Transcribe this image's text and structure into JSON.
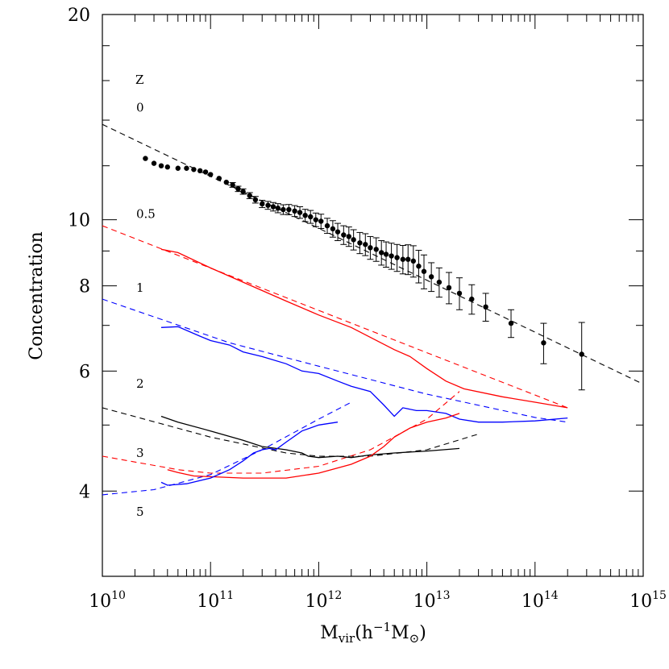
{
  "chart_data": {
    "type": "line",
    "title": "",
    "xlabel": {
      "main": "M",
      "sub": "vir",
      "rest": "(h",
      "sup": "−1",
      "main2": "M",
      "sub2": "⊙",
      "close": ")"
    },
    "ylabel": "Concentration",
    "x_scale": "log",
    "y_scale": "log",
    "xlim": [
      10000000000.0,
      1000000000000000.0
    ],
    "ylim": [
      3.0,
      20.0
    ],
    "x_ticks": [
      {
        "value": 10000000000.0,
        "base": "10",
        "exp": "10"
      },
      {
        "value": 100000000000.0,
        "base": "10",
        "exp": "11"
      },
      {
        "value": 1000000000000.0,
        "base": "10",
        "exp": "12"
      },
      {
        "value": 10000000000000.0,
        "base": "10",
        "exp": "13"
      },
      {
        "value": 100000000000000.0,
        "base": "10",
        "exp": "14"
      },
      {
        "value": 1000000000000000.0,
        "base": "10",
        "exp": "15"
      }
    ],
    "y_ticks": [
      {
        "value": 4,
        "label": "4"
      },
      {
        "value": 6,
        "label": "6"
      },
      {
        "value": 8,
        "label": "8"
      },
      {
        "value": 10,
        "label": "10"
      },
      {
        "value": 20,
        "label": "20"
      }
    ],
    "legend_header": "Z",
    "redshift_labels": [
      {
        "text": "0",
        "y": 14.6
      },
      {
        "text": "0.5",
        "y": 10.2
      },
      {
        "text": "1",
        "y": 7.95
      },
      {
        "text": "2",
        "y": 5.75
      },
      {
        "text": "3",
        "y": 4.55
      },
      {
        "text": "5",
        "y": 3.73
      }
    ],
    "colors": {
      "z0": "#000000",
      "z05": "#ff0000",
      "z1": "#0000ff",
      "z2": "#000000",
      "z3": "#ff0000",
      "z5": "#0000ff"
    },
    "fits": [
      {
        "name": "z=0 fit",
        "color": "#000000",
        "x": [
          10000000000.0,
          1000000000000000.0
        ],
        "y": [
          13.8,
          5.74
        ]
      },
      {
        "name": "z=0.5 fit",
        "color": "#ff0000",
        "x": [
          10000000000.0,
          200000000000000.0
        ],
        "y": [
          9.8,
          5.3
        ]
      },
      {
        "name": "z=1 fit",
        "color": "#0000ff",
        "x": [
          10000000000.0,
          150000000000.0,
          1000000000000.0,
          10000000000000.0,
          100000000000000.0,
          200000000000000.0
        ],
        "y": [
          7.65,
          6.6,
          6.1,
          5.55,
          5.13,
          5.05
        ]
      },
      {
        "name": "z=2 fit",
        "color": "#000000",
        "x": [
          10000000000.0,
          100000000000.0,
          500000000000.0,
          1000000000000.0,
          3000000000000.0,
          10000000000000.0,
          30000000000000.0
        ],
        "y": [
          5.3,
          4.8,
          4.55,
          4.5,
          4.5,
          4.6,
          4.85
        ]
      },
      {
        "name": "z=3 fit",
        "color": "#ff0000",
        "x": [
          10000000000.0,
          50000000000.0,
          100000000000.0,
          300000000000.0,
          1000000000000.0,
          3000000000000.0,
          10000000000000.0,
          20000000000000.0
        ],
        "y": [
          4.5,
          4.3,
          4.25,
          4.25,
          4.35,
          4.6,
          5.1,
          5.6
        ]
      },
      {
        "name": "z=5 fit",
        "color": "#0000ff",
        "x": [
          10000000000.0,
          30000000000.0,
          100000000000.0,
          300000000000.0,
          1000000000000.0,
          2000000000000.0
        ],
        "y": [
          3.95,
          4.02,
          4.23,
          4.6,
          5.1,
          5.4
        ]
      }
    ],
    "series": [
      {
        "name": "z=0.5",
        "color": "#ff0000",
        "x": [
          35000000000.0,
          50000000000.0,
          100000000000.0,
          200000000000.0,
          500000000000.0,
          1000000000000.0,
          2000000000000.0,
          5000000000000.0,
          7000000000000.0,
          10000000000000.0,
          15000000000000.0,
          22000000000000.0,
          50000000000000.0,
          100000000000000.0,
          200000000000000.0
        ],
        "y": [
          9.05,
          8.95,
          8.5,
          8.1,
          7.6,
          7.25,
          6.95,
          6.45,
          6.3,
          6.05,
          5.8,
          5.65,
          5.5,
          5.4,
          5.3
        ]
      },
      {
        "name": "z=1",
        "color": "#0000ff",
        "x": [
          35000000000.0,
          50000000000.0,
          80000000000.0,
          100000000000.0,
          150000000000.0,
          200000000000.0,
          300000000000.0,
          500000000000.0,
          700000000000.0,
          1000000000000.0,
          1500000000000.0,
          2000000000000.0,
          3000000000000.0,
          4000000000000.0,
          5000000000000.0,
          6000000000000.0,
          8000000000000.0,
          10000000000000.0,
          15000000000000.0,
          20000000000000.0,
          30000000000000.0,
          50000000000000.0,
          100000000000000.0,
          200000000000000.0
        ],
        "y": [
          6.95,
          6.97,
          6.75,
          6.65,
          6.55,
          6.4,
          6.3,
          6.15,
          6.0,
          5.95,
          5.8,
          5.7,
          5.6,
          5.35,
          5.15,
          5.3,
          5.25,
          5.25,
          5.2,
          5.1,
          5.05,
          5.05,
          5.07,
          5.12
        ]
      },
      {
        "name": "z=2",
        "color": "#000000",
        "x": [
          35000000000.0,
          50000000000.0,
          100000000000.0,
          200000000000.0,
          300000000000.0,
          500000000000.0,
          700000000000.0,
          800000000000.0,
          1000000000000.0,
          1500000000000.0,
          2000000000000.0,
          3000000000000.0,
          5000000000000.0,
          10000000000000.0,
          20000000000000.0
        ],
        "y": [
          5.15,
          5.05,
          4.9,
          4.75,
          4.65,
          4.6,
          4.55,
          4.5,
          4.48,
          4.5,
          4.48,
          4.52,
          4.55,
          4.58,
          4.62
        ]
      },
      {
        "name": "z=3",
        "color": "#ff0000",
        "x": [
          40000000000.0,
          50000000000.0,
          70000000000.0,
          100000000000.0,
          200000000000.0,
          500000000000.0,
          1000000000000.0,
          2000000000000.0,
          3000000000000.0,
          4000000000000.0,
          5000000000000.0,
          7000000000000.0,
          10000000000000.0,
          15000000000000.0,
          20000000000000.0
        ],
        "y": [
          4.3,
          4.26,
          4.21,
          4.2,
          4.18,
          4.18,
          4.25,
          4.38,
          4.5,
          4.65,
          4.8,
          4.95,
          5.05,
          5.12,
          5.2
        ]
      },
      {
        "name": "z=5",
        "color": "#0000ff",
        "x": [
          35000000000.0,
          40000000000.0,
          60000000000.0,
          100000000000.0,
          150000000000.0,
          200000000000.0,
          250000000000.0,
          300000000000.0,
          350000000000.0,
          400000000000.0,
          500000000000.0,
          700000000000.0,
          1000000000000.0,
          1500000000000.0
        ],
        "y": [
          4.12,
          4.08,
          4.1,
          4.18,
          4.3,
          4.43,
          4.55,
          4.6,
          4.62,
          4.6,
          4.72,
          4.9,
          5.0,
          5.05
        ]
      }
    ],
    "points": {
      "name": "z=0",
      "color": "#000000",
      "x": [
        25000000000.0,
        30000000000.0,
        35000000000.0,
        40000000000.0,
        50000000000.0,
        60000000000.0,
        70000000000.0,
        80000000000.0,
        90000000000.0,
        100000000000.0,
        120000000000.0,
        140000000000.0,
        160000000000.0,
        180000000000.0,
        200000000000.0,
        230000000000.0,
        260000000000.0,
        300000000000.0,
        340000000000.0,
        380000000000.0,
        420000000000.0,
        470000000000.0,
        530000000000.0,
        600000000000.0,
        670000000000.0,
        750000000000.0,
        840000000000.0,
        940000000000.0,
        1050000000000.0,
        1200000000000.0,
        1350000000000.0,
        1500000000000.0,
        1700000000000.0,
        1900000000000.0,
        2100000000000.0,
        2400000000000.0,
        2700000000000.0,
        3000000000000.0,
        3400000000000.0,
        3800000000000.0,
        4200000000000.0,
        4700000000000.0,
        5300000000000.0,
        6000000000000.0,
        6700000000000.0,
        7500000000000.0,
        8400000000000.0,
        9400000000000.0,
        11000000000000.0,
        13000000000000.0,
        16000000000000.0,
        20000000000000.0,
        26000000000000.0,
        35000000000000.0,
        60000000000000.0,
        120000000000000.0,
        270000000000000.0
      ],
      "y": [
        12.3,
        12.1,
        12.0,
        11.95,
        11.9,
        11.9,
        11.85,
        11.8,
        11.75,
        11.65,
        11.5,
        11.35,
        11.25,
        11.1,
        11.0,
        10.85,
        10.7,
        10.55,
        10.5,
        10.45,
        10.4,
        10.35,
        10.35,
        10.3,
        10.25,
        10.15,
        10.1,
        10.0,
        9.95,
        9.8,
        9.7,
        9.6,
        9.5,
        9.45,
        9.35,
        9.25,
        9.2,
        9.1,
        9.05,
        8.95,
        8.9,
        8.85,
        8.8,
        8.75,
        8.75,
        8.7,
        8.55,
        8.4,
        8.25,
        8.1,
        7.95,
        7.8,
        7.65,
        7.45,
        7.05,
        6.6,
        6.35
      ],
      "err": [
        0.05,
        0.05,
        0.05,
        0.05,
        0.05,
        0.05,
        0.05,
        0.05,
        0.06,
        0.06,
        0.07,
        0.08,
        0.09,
        0.1,
        0.1,
        0.11,
        0.12,
        0.13,
        0.14,
        0.15,
        0.16,
        0.17,
        0.18,
        0.19,
        0.2,
        0.21,
        0.22,
        0.23,
        0.24,
        0.25,
        0.27,
        0.28,
        0.3,
        0.31,
        0.32,
        0.33,
        0.34,
        0.35,
        0.36,
        0.37,
        0.38,
        0.39,
        0.4,
        0.42,
        0.44,
        0.46,
        0.47,
        0.48,
        0.4,
        0.4,
        0.42,
        0.42,
        0.38,
        0.35,
        0.33,
        0.45,
        0.72
      ]
    }
  }
}
